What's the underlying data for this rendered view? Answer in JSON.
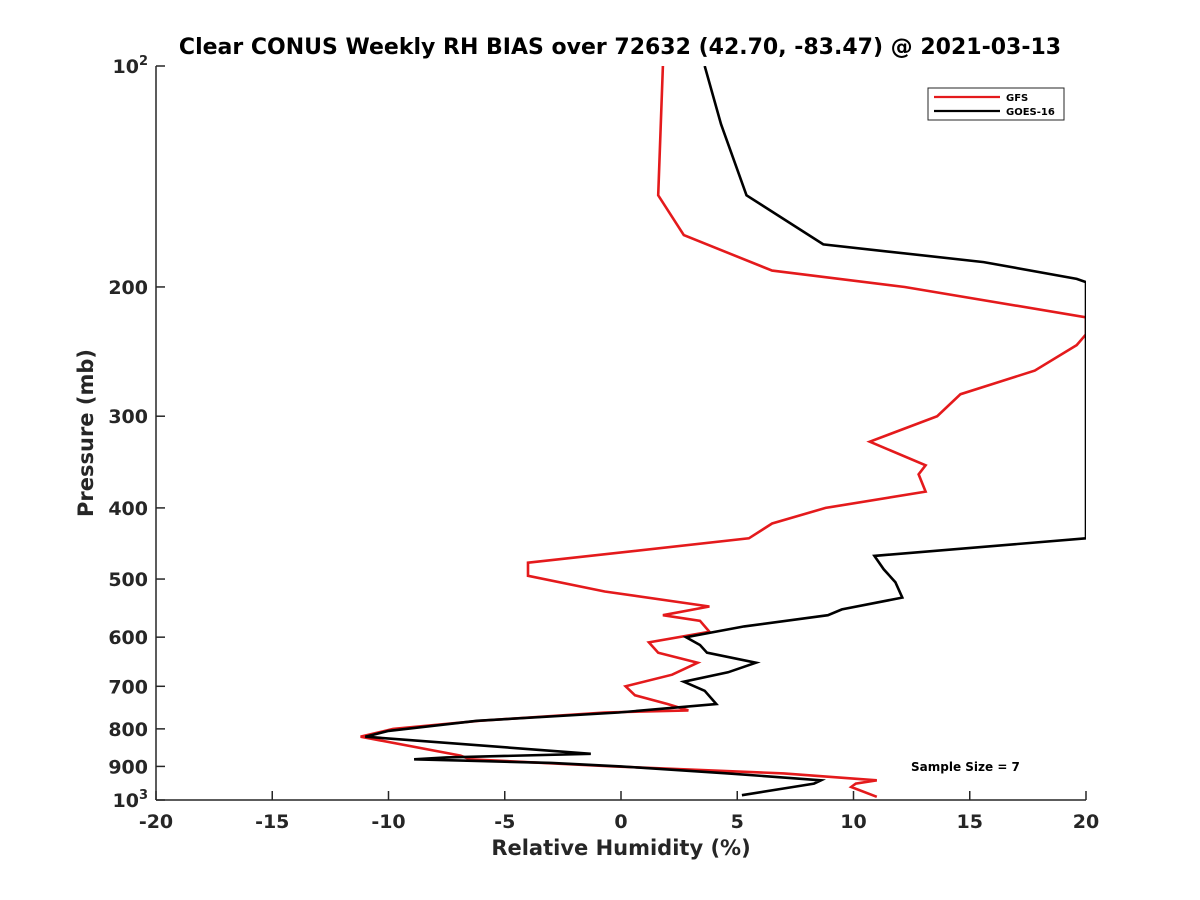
{
  "chart_data": {
    "type": "line",
    "title": "Clear CONUS Weekly RH BIAS over 72632 (42.70, -83.47) @ 2021-03-13",
    "xlabel": "Relative Humidity (%)",
    "ylabel": "Pressure (mb)",
    "xlim": [
      -20,
      20
    ],
    "ylim": [
      100,
      1000
    ],
    "y_scale": "log",
    "y_reversed": true,
    "grid": false,
    "legend_position": "top-right",
    "x_ticks": [
      "-20",
      "-15",
      "-10",
      "-5",
      "0",
      "5",
      "10",
      "15",
      "20"
    ],
    "y_ticks": [
      {
        "value": 100,
        "base": "10",
        "exponent": "2"
      },
      {
        "value": 200,
        "label": "200"
      },
      {
        "value": 300,
        "label": "300"
      },
      {
        "value": 400,
        "label": "400"
      },
      {
        "value": 500,
        "label": "500"
      },
      {
        "value": 600,
        "label": "600"
      },
      {
        "value": 700,
        "label": "700"
      },
      {
        "value": 800,
        "label": "800"
      },
      {
        "value": 900,
        "label": "900"
      },
      {
        "value": 1000,
        "base": "10",
        "exponent": "3"
      }
    ],
    "series": [
      {
        "name": "GFS",
        "color": "#e41a1c",
        "points": [
          [
            1.8,
            100
          ],
          [
            1.6,
            150
          ],
          [
            2.7,
            170
          ],
          [
            6.5,
            190
          ],
          [
            12.2,
            200
          ],
          [
            20.0,
            220
          ],
          [
            20.0,
            232
          ],
          [
            19.6,
            240
          ],
          [
            17.8,
            260
          ],
          [
            14.6,
            280
          ],
          [
            13.6,
            300
          ],
          [
            10.7,
            325
          ],
          [
            13.1,
            350
          ],
          [
            12.8,
            360
          ],
          [
            13.1,
            380
          ],
          [
            8.8,
            400
          ],
          [
            6.5,
            420
          ],
          [
            5.5,
            440
          ],
          [
            -4.0,
            475
          ],
          [
            -4.0,
            495
          ],
          [
            -0.7,
            520
          ],
          [
            3.8,
            545
          ],
          [
            1.8,
            560
          ],
          [
            3.4,
            570
          ],
          [
            3.8,
            590
          ],
          [
            1.2,
            610
          ],
          [
            1.6,
            630
          ],
          [
            3.3,
            650
          ],
          [
            2.2,
            675
          ],
          [
            0.2,
            700
          ],
          [
            0.6,
            720
          ],
          [
            2.0,
            740
          ],
          [
            2.9,
            755
          ],
          [
            -0.7,
            760
          ],
          [
            -6.1,
            780
          ],
          [
            -9.8,
            800
          ],
          [
            -11.2,
            820
          ],
          [
            -6.9,
            870
          ],
          [
            -6.5,
            880
          ],
          [
            -0.3,
            900
          ],
          [
            7.0,
            920
          ],
          [
            11.0,
            940
          ],
          [
            10.1,
            950
          ],
          [
            9.9,
            960
          ],
          [
            11.0,
            990
          ]
        ]
      },
      {
        "name": "GOES-16",
        "color": "#000000",
        "points": [
          [
            3.6,
            100
          ],
          [
            4.3,
            120
          ],
          [
            5.4,
            150
          ],
          [
            8.7,
            175
          ],
          [
            15.6,
            185
          ],
          [
            19.6,
            195
          ],
          [
            20.0,
            197
          ],
          [
            20.0,
            440
          ],
          [
            10.9,
            465
          ],
          [
            11.3,
            485
          ],
          [
            11.8,
            505
          ],
          [
            12.1,
            530
          ],
          [
            9.5,
            550
          ],
          [
            8.9,
            560
          ],
          [
            5.3,
            580
          ],
          [
            2.8,
            600
          ],
          [
            3.4,
            615
          ],
          [
            3.7,
            630
          ],
          [
            5.8,
            650
          ],
          [
            4.6,
            670
          ],
          [
            2.7,
            690
          ],
          [
            3.6,
            710
          ],
          [
            4.1,
            740
          ],
          [
            -0.1,
            760
          ],
          [
            -6.2,
            780
          ],
          [
            -10.0,
            805
          ],
          [
            -11.0,
            820
          ],
          [
            -1.3,
            865
          ],
          [
            -7.5,
            875
          ],
          [
            -8.9,
            880
          ],
          [
            -3.0,
            890
          ],
          [
            0.0,
            900
          ],
          [
            4.6,
            920
          ],
          [
            8.6,
            940
          ],
          [
            8.3,
            950
          ],
          [
            7.4,
            960
          ],
          [
            5.2,
            985
          ]
        ]
      }
    ],
    "annotations": [
      {
        "text": "Sample Size = 7",
        "x": 12.9,
        "y": 900
      }
    ]
  }
}
